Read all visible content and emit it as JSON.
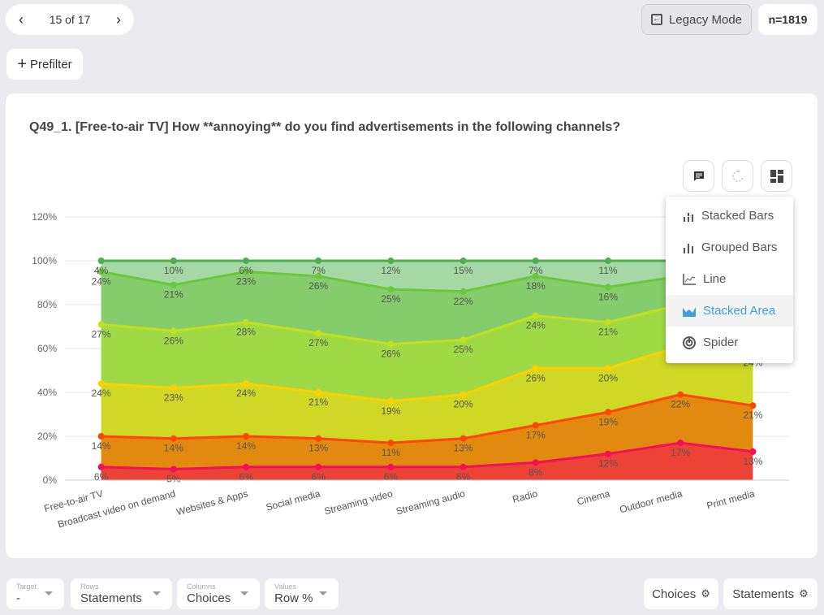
{
  "pager": {
    "label": "15 of 17"
  },
  "header": {
    "legacy_label": "Legacy Mode",
    "n_label": "n=1819"
  },
  "prefilter": {
    "label": "Prefilter"
  },
  "card": {
    "title": "Q49_1. [Free-to-air TV] How **annoying** do you find advertisements in the following channels?"
  },
  "menu": {
    "items": [
      {
        "label": "Stacked Bars",
        "icon": "stacked-bars-icon"
      },
      {
        "label": "Grouped Bars",
        "icon": "grouped-bars-icon"
      },
      {
        "label": "Line",
        "icon": "line-chart-icon"
      },
      {
        "label": "Stacked Area",
        "icon": "area-chart-icon",
        "active": true
      },
      {
        "label": "Spider",
        "icon": "spider-icon"
      }
    ]
  },
  "filters": {
    "target": {
      "label": "Target",
      "value": "-"
    },
    "rows": {
      "label": "Rows",
      "value": "Statements"
    },
    "columns": {
      "label": "Columns",
      "value": "Choices"
    },
    "values": {
      "label": "Values",
      "value": "Row %"
    }
  },
  "buttons": {
    "choices": "Choices",
    "statements": "Statements"
  },
  "chart_data": {
    "type": "area",
    "stacked": true,
    "title": "Q49_1. [Free-to-air TV] How **annoying** do you find advertisements in the following channels?",
    "categories": [
      "Free-to-air TV",
      "Broadcast video on demand",
      "Websites & Apps",
      "Social media",
      "Streaming video",
      "Streaming audio",
      "Radio",
      "Cinema",
      "Outdoor media",
      "Print media"
    ],
    "yticks": [
      "0%",
      "20%",
      "40%",
      "60%",
      "80%",
      "100%",
      "120%"
    ],
    "ylim": [
      0,
      120
    ],
    "grid": true,
    "series": [
      {
        "values": [
          6,
          5,
          6,
          6,
          6,
          6,
          8,
          12,
          17,
          13
        ],
        "fill": "#ec4336",
        "line": "#f2105c"
      },
      {
        "values": [
          14,
          14,
          14,
          13,
          11,
          13,
          17,
          19,
          22,
          21
        ],
        "fill": "#e2890f",
        "line": "#ff4500"
      },
      {
        "values": [
          24,
          23,
          24,
          21,
          19,
          20,
          26,
          20,
          22,
          24
        ],
        "fill": "#cfd824",
        "line": "#ffd000"
      },
      {
        "values": [
          27,
          26,
          28,
          27,
          26,
          25,
          24,
          21,
          19,
          22
        ],
        "fill": "#9fda46",
        "line": "#c3e01a"
      },
      {
        "values": [
          24,
          21,
          23,
          26,
          25,
          22,
          18,
          16,
          13,
          13
        ],
        "fill": "#85cc6c",
        "line": "#6ac83a"
      },
      {
        "values": [
          4,
          10,
          6,
          7,
          12,
          15,
          7,
          11,
          7,
          7
        ],
        "fill": "#a6d8a6",
        "line": "#4caf50"
      }
    ]
  }
}
